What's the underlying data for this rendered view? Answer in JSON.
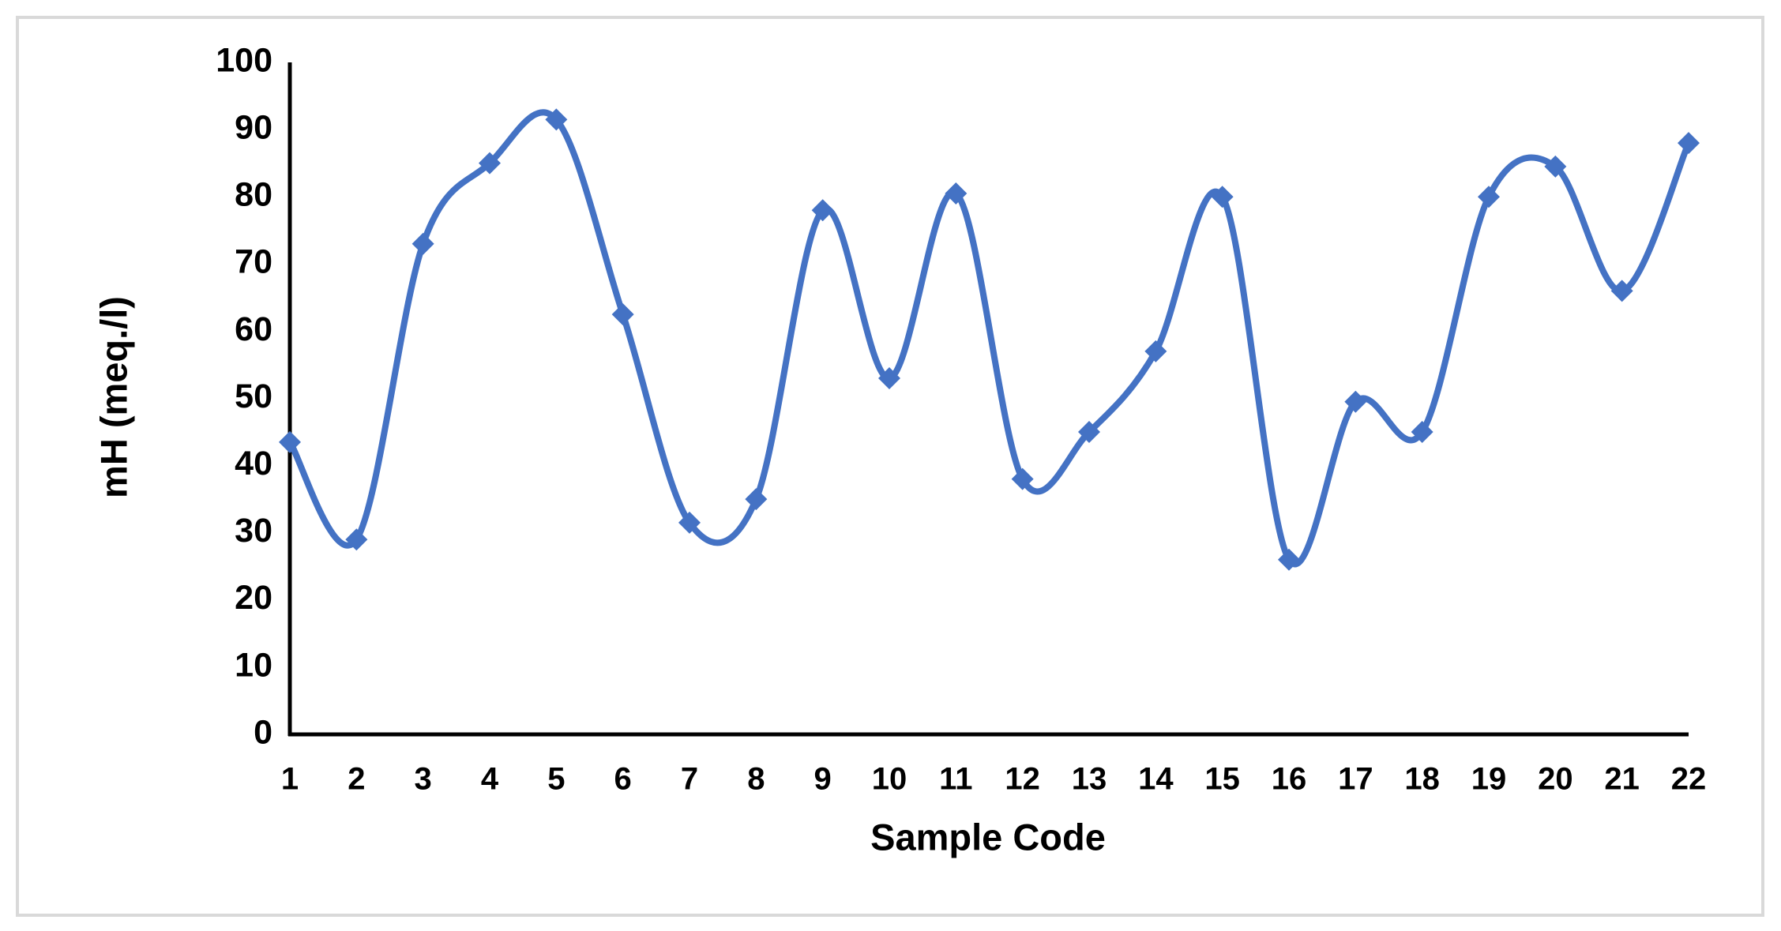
{
  "chart_data": {
    "type": "line",
    "x_label": "Sample Code",
    "y_label": "mH (meq./l)",
    "categories": [
      "1",
      "2",
      "3",
      "4",
      "5",
      "6",
      "7",
      "8",
      "9",
      "10",
      "11",
      "12",
      "13",
      "14",
      "15",
      "16",
      "17",
      "18",
      "19",
      "20",
      "21",
      "22"
    ],
    "values": [
      43.5,
      29,
      73,
      85,
      91.5,
      62.5,
      31.5,
      35,
      78,
      53,
      80.5,
      38,
      45,
      57,
      80,
      26,
      49.5,
      45,
      80,
      84.5,
      66,
      88
    ],
    "color": "#4472c4",
    "smooth": true,
    "marker": "diamond",
    "ylim": [
      0,
      100
    ],
    "yticks": [
      0,
      10,
      20,
      30,
      40,
      50,
      60,
      70,
      80,
      90,
      100
    ],
    "grid": false
  }
}
